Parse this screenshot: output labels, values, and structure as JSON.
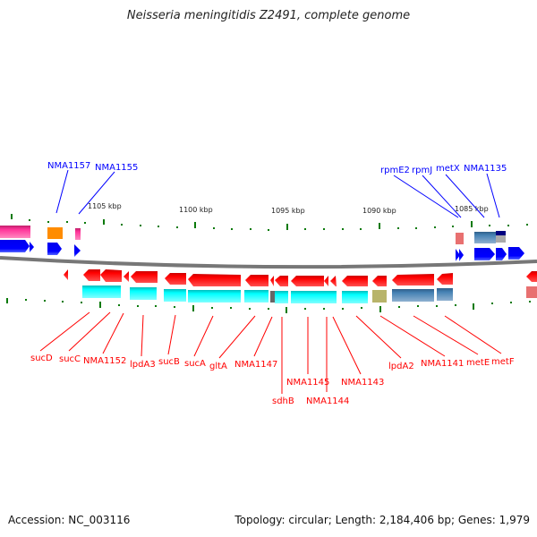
{
  "title": "Neisseria meningitidis Z2491, complete genome",
  "footer": {
    "accession": "Accession: NC_003116",
    "topology": "Topology: circular; Length: 2,184,406 bp; Genes: 1,979"
  },
  "scale_labels": [
    "1105 kbp",
    "1100 kbp",
    "1095 kbp",
    "1090 kbp",
    "1085 kbp"
  ],
  "top_labels": [
    "NMA1157",
    "NMA1155",
    "rpmE2",
    "rpmJ",
    "metX",
    "NMA1135"
  ],
  "bottom_labels": [
    "sucD",
    "sucC",
    "NMA1152",
    "lpdA3",
    "sucB",
    "sucA",
    "gltA",
    "NMA1147",
    "sdhB",
    "NMA1145",
    "NMA1144",
    "NMA1143",
    "lpdA2",
    "NMA1141",
    "metE",
    "metF"
  ],
  "colors": {
    "forward_gene": "#0000ff",
    "reverse_gene": "#ff0000",
    "cds_cyan": "#00ffff",
    "cds_steel": "#4682b4",
    "cds_pink": "#ff3399",
    "cds_orange": "#ff8c00",
    "cds_olive": "#b8b46a",
    "backbone": "#888888",
    "tick": "#0a7a0a"
  }
}
